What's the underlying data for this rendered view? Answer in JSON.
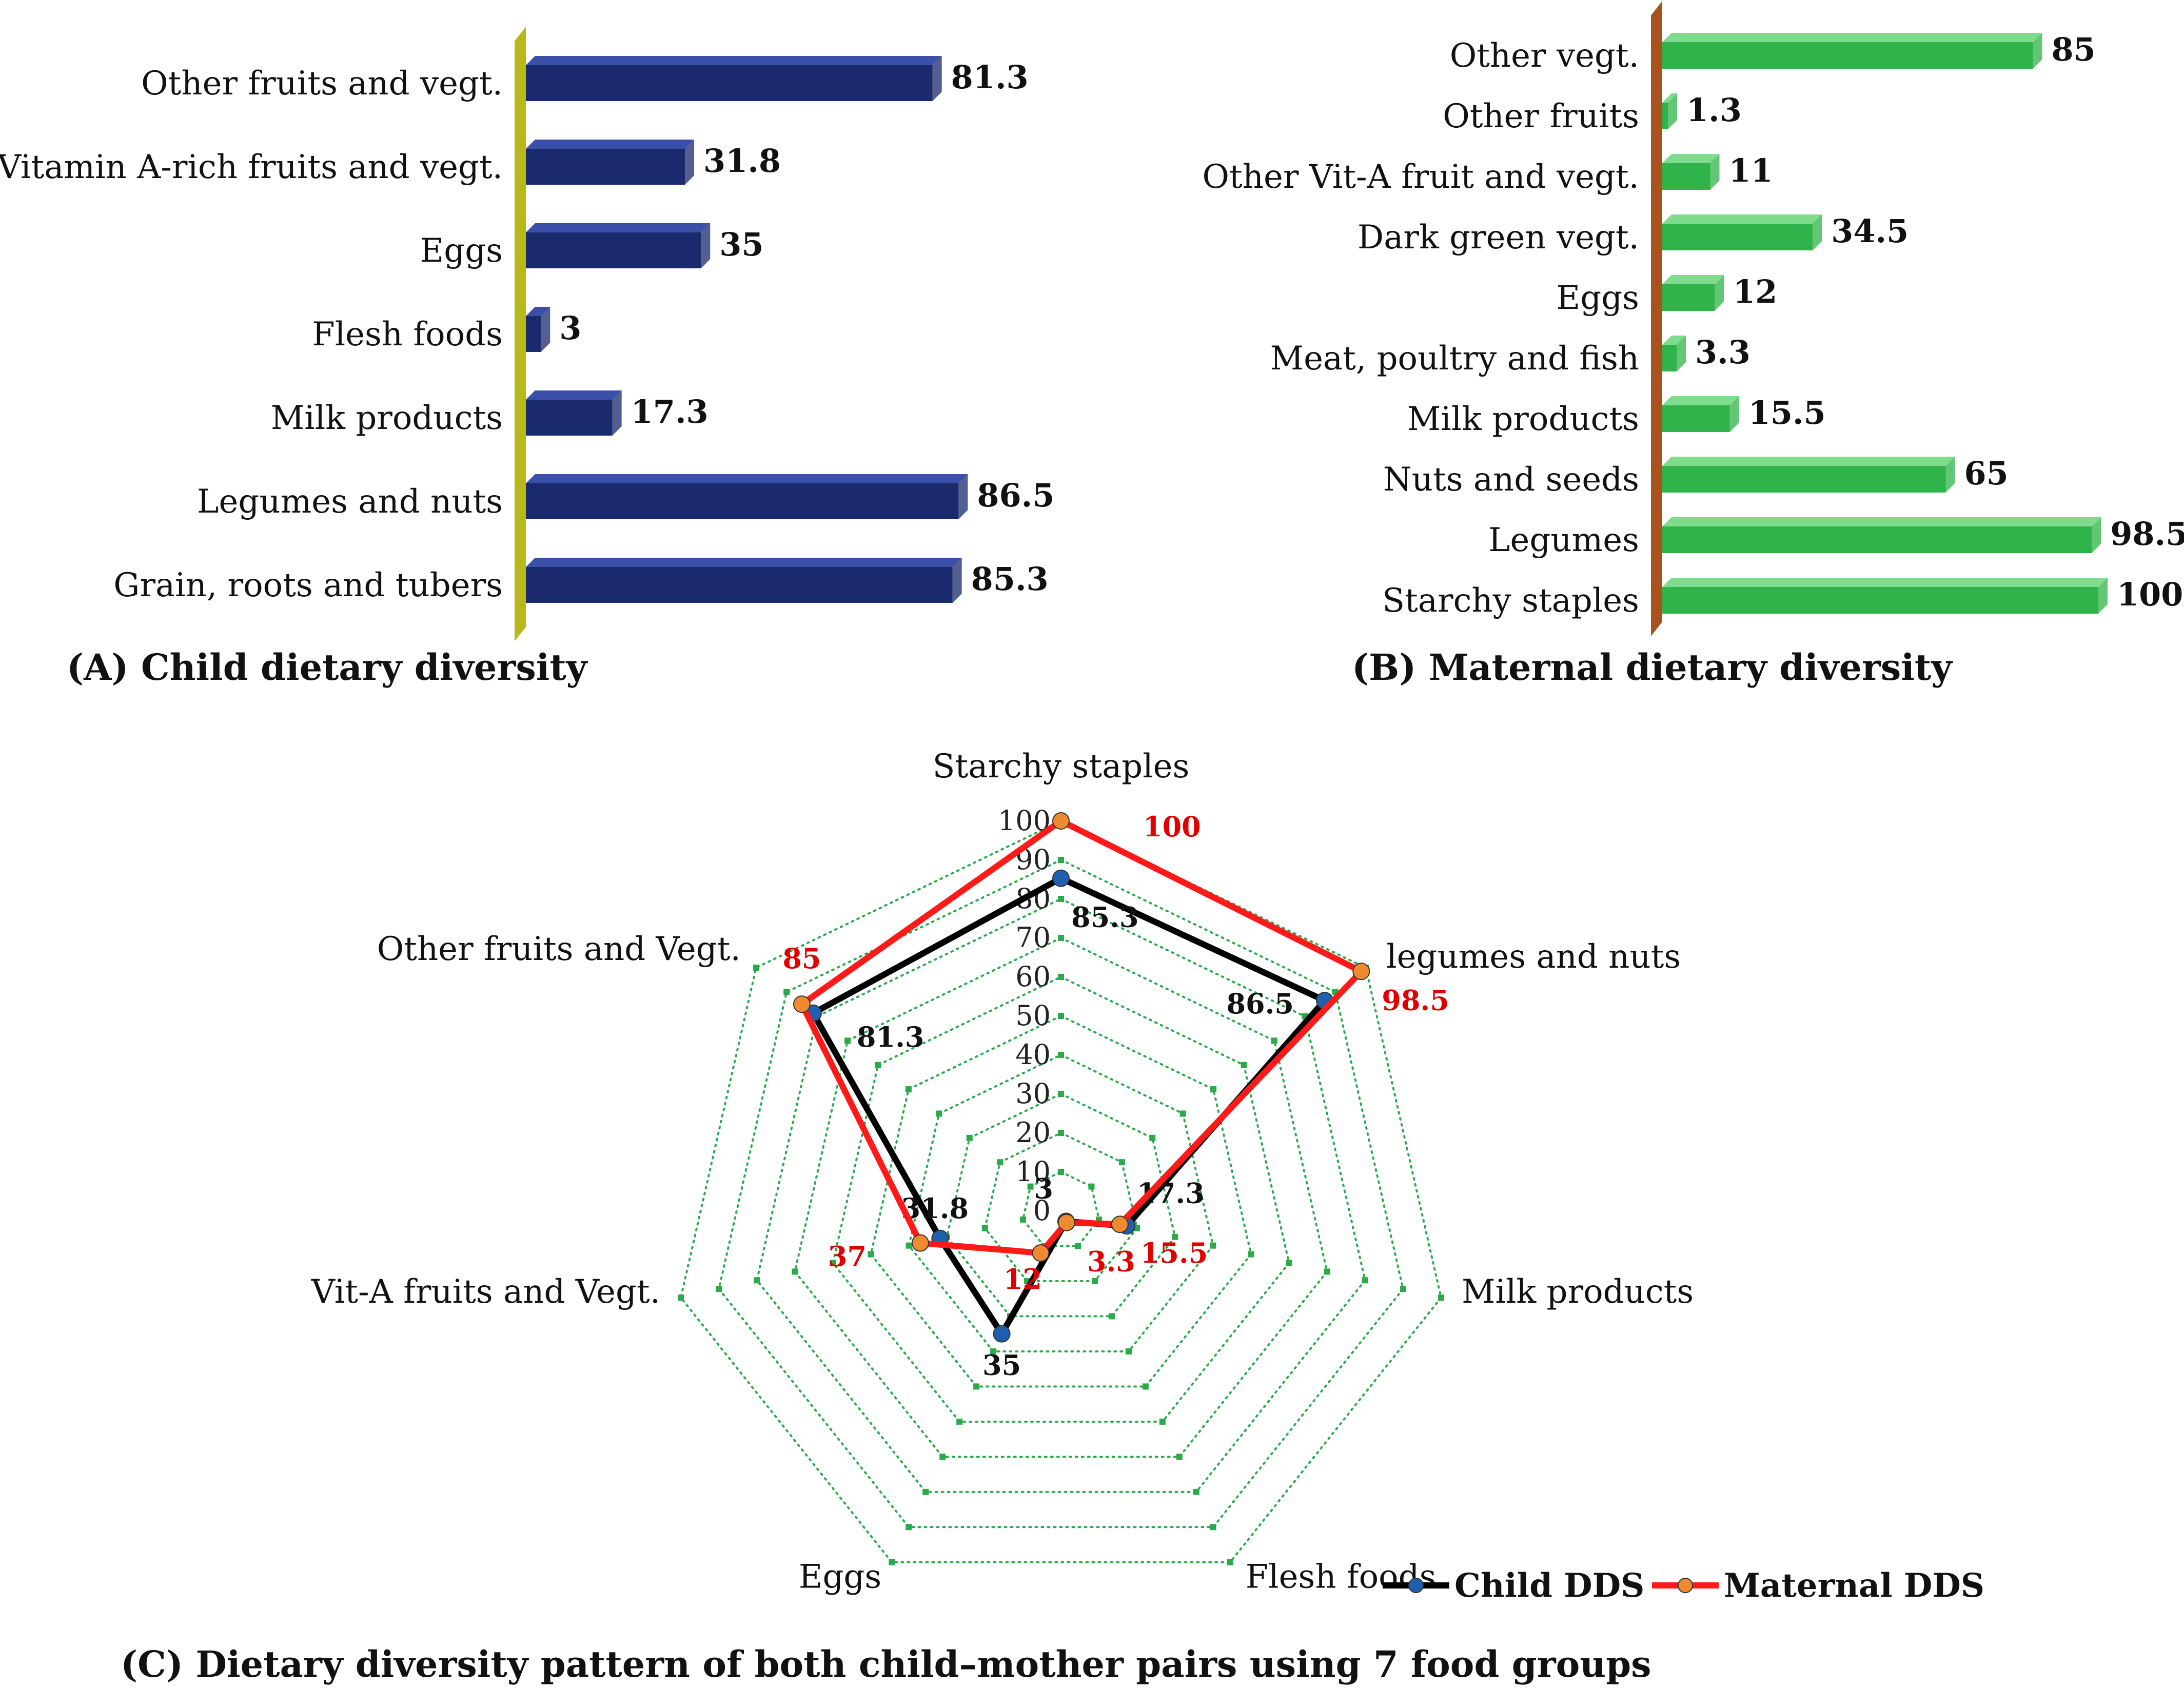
{
  "chart_data": [
    {
      "id": "A",
      "type": "bar",
      "orientation": "horizontal",
      "caption": "(A) Child dietary diversity",
      "categories": [
        "Other fruits and vegt.",
        "Vitamin A-rich fruits and vegt.",
        "Eggs",
        "Flesh foods",
        "Milk products",
        "Legumes and nuts",
        "Grain, roots and tubers"
      ],
      "values": [
        81.3,
        31.8,
        35,
        3,
        17.3,
        86.5,
        85.3
      ],
      "value_labels": [
        "81.3",
        "31.8",
        "35",
        "3",
        "17.3",
        "86.5",
        "85.3"
      ],
      "xlim": [
        0,
        100
      ],
      "bar_color": "#1a2a6c",
      "bar_color_top": "#3a4fa8",
      "wall_color": "#b8b81a"
    },
    {
      "id": "B",
      "type": "bar",
      "orientation": "horizontal",
      "caption": "(B) Maternal dietary diversity",
      "categories": [
        "Other vegt.",
        "Other fruits",
        "Other Vit-A fruit and vegt.",
        "Dark green vegt.",
        "Eggs",
        "Meat, poultry and fish",
        "Milk products",
        "Nuts and seeds",
        "Legumes",
        "Starchy staples"
      ],
      "values": [
        85,
        1.3,
        11,
        34.5,
        12,
        3.3,
        15.5,
        65,
        98.5,
        100
      ],
      "value_labels": [
        "85",
        "1.3",
        "11",
        "34.5",
        "12",
        "3.3",
        "15.5",
        "65",
        "98.5",
        "100"
      ],
      "xlim": [
        0,
        100
      ],
      "bar_color": "#2fb34a",
      "bar_color_top": "#7fdc8c",
      "wall_color": "#a8521e"
    },
    {
      "id": "C",
      "type": "radar",
      "caption": "(C) Dietary diversity pattern of both child–mother pairs using 7 food groups",
      "axes": [
        "Starchy staples",
        "legumes and nuts",
        "Milk products",
        "Flesh foods",
        "Eggs",
        "Vit-A fruits and Vegt.",
        "Other fruits and Vegt."
      ],
      "ticks": [
        "0",
        "10",
        "20",
        "30",
        "40",
        "50",
        "60",
        "70",
        "80",
        "90",
        "100"
      ],
      "range": [
        0,
        100
      ],
      "grid_color": "#2aaa4a",
      "series": [
        {
          "name": "Child DDS",
          "values": [
            85.3,
            86.5,
            17.3,
            3,
            35,
            31.8,
            81.3
          ],
          "labels": [
            "85.3",
            "86.5",
            "17.3",
            "3",
            "35",
            "31.8",
            "81.3"
          ],
          "line_color": "#000000",
          "marker_color": "#1f5fb0",
          "label_color": "#111111"
        },
        {
          "name": "Maternal DDS",
          "values": [
            100,
            98.5,
            15.5,
            3.3,
            12,
            37,
            85
          ],
          "labels": [
            "100",
            "98.5",
            "15.5",
            "3.3",
            "12",
            "37",
            "85"
          ],
          "line_color": "#ff1a1a",
          "marker_color": "#f08a30",
          "label_color": "#e00000"
        }
      ]
    }
  ]
}
